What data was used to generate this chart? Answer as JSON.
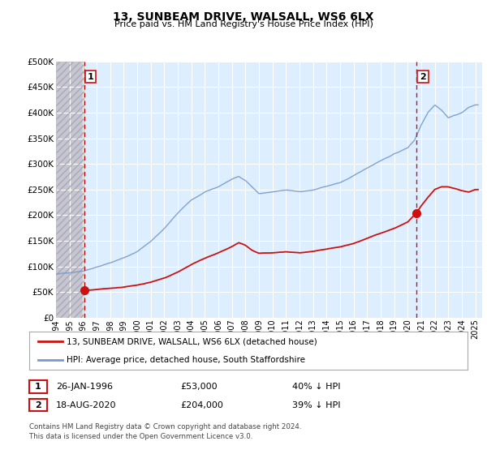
{
  "title": "13, SUNBEAM DRIVE, WALSALL, WS6 6LX",
  "subtitle": "Price paid vs. HM Land Registry's House Price Index (HPI)",
  "background_color": "#ffffff",
  "plot_bg_color": "#ddeeff",
  "grid_color": "#ffffff",
  "hpi_color": "#7799cc",
  "price_color": "#cc1111",
  "vline_color": "#cc1111",
  "marker1_x": 1996.07,
  "marker1_y": 53000,
  "marker2_x": 2020.63,
  "marker2_y": 204000,
  "legend_entries": [
    "13, SUNBEAM DRIVE, WALSALL, WS6 6LX (detached house)",
    "HPI: Average price, detached house, South Staffordshire"
  ],
  "table_rows": [
    [
      "1",
      "26-JAN-1996",
      "£53,000",
      "40% ↓ HPI"
    ],
    [
      "2",
      "18-AUG-2020",
      "£204,000",
      "39% ↓ HPI"
    ]
  ],
  "footnote1": "Contains HM Land Registry data © Crown copyright and database right 2024.",
  "footnote2": "This data is licensed under the Open Government Licence v3.0.",
  "ylim": [
    0,
    500000
  ],
  "xlim": [
    1994.0,
    2025.5
  ],
  "yticks": [
    0,
    50000,
    100000,
    150000,
    200000,
    250000,
    300000,
    350000,
    400000,
    450000,
    500000
  ],
  "ytick_labels": [
    "£0",
    "£50K",
    "£100K",
    "£150K",
    "£200K",
    "£250K",
    "£300K",
    "£350K",
    "£400K",
    "£450K",
    "£500K"
  ],
  "xtick_years": [
    1994,
    1995,
    1996,
    1997,
    1998,
    1999,
    2000,
    2001,
    2002,
    2003,
    2004,
    2005,
    2006,
    2007,
    2008,
    2009,
    2010,
    2011,
    2012,
    2013,
    2014,
    2015,
    2016,
    2017,
    2018,
    2019,
    2020,
    2021,
    2022,
    2023,
    2024,
    2025
  ],
  "hpi_knots_x": [
    1994.0,
    1995.0,
    1996.0,
    1997.0,
    1998.0,
    1999.0,
    2000.0,
    2001.0,
    2002.0,
    2003.0,
    2004.0,
    2005.0,
    2006.0,
    2007.0,
    2007.5,
    2008.0,
    2008.5,
    2009.0,
    2010.0,
    2011.0,
    2012.0,
    2013.0,
    2014.0,
    2015.0,
    2016.0,
    2017.0,
    2018.0,
    2019.0,
    2020.0,
    2020.5,
    2021.0,
    2021.5,
    2022.0,
    2022.5,
    2023.0,
    2023.5,
    2024.0,
    2024.5,
    2025.0
  ],
  "hpi_knots_y": [
    85000,
    88000,
    92000,
    100000,
    108000,
    118000,
    130000,
    150000,
    175000,
    205000,
    230000,
    245000,
    255000,
    270000,
    275000,
    268000,
    255000,
    242000,
    245000,
    248000,
    245000,
    248000,
    255000,
    262000,
    275000,
    290000,
    305000,
    318000,
    330000,
    345000,
    375000,
    400000,
    415000,
    405000,
    390000,
    395000,
    400000,
    410000,
    415000
  ],
  "price_knots_x": [
    1996.07,
    1997.0,
    1998.0,
    1999.0,
    2000.0,
    2001.0,
    2002.0,
    2003.0,
    2004.0,
    2005.0,
    2006.0,
    2007.0,
    2007.5,
    2008.0,
    2008.5,
    2009.0,
    2010.0,
    2011.0,
    2012.0,
    2013.0,
    2014.0,
    2015.0,
    2016.0,
    2017.0,
    2018.0,
    2019.0,
    2020.0,
    2020.63,
    2021.0,
    2021.5,
    2022.0,
    2022.5,
    2023.0,
    2023.5,
    2024.0,
    2024.5,
    2025.0
  ],
  "price_knots_y": [
    53000,
    55000,
    57000,
    60000,
    64000,
    70000,
    78000,
    90000,
    105000,
    118000,
    128000,
    140000,
    148000,
    143000,
    133000,
    127000,
    128000,
    130000,
    128000,
    130000,
    134000,
    138000,
    145000,
    155000,
    165000,
    175000,
    187000,
    204000,
    218000,
    235000,
    250000,
    255000,
    255000,
    252000,
    248000,
    245000,
    250000
  ]
}
